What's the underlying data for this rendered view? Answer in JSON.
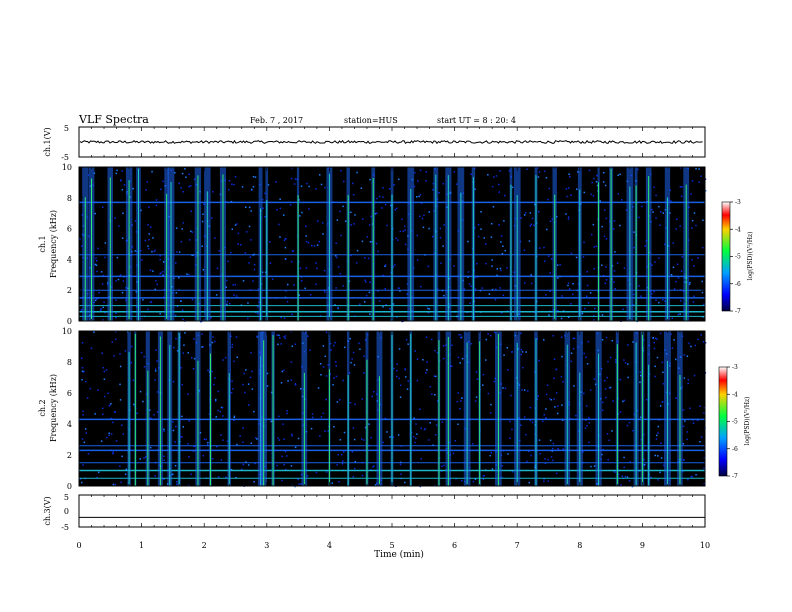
{
  "header": {
    "title": "VLF Spectra",
    "date": "Feb. 7 , 2017",
    "station": "station=HUS",
    "start_time": "start UT = 8 : 20: 4"
  },
  "chart_data": [
    {
      "type": "line",
      "panel": "ch1-waveform",
      "ylabel": "ch.1(V)",
      "ylim": [
        -5,
        5
      ],
      "yticks": [
        "5",
        "-5"
      ],
      "baseline_value": 0,
      "color": "#000000"
    },
    {
      "type": "heatmap",
      "panel": "ch1-spectrogram",
      "ylabel": "ch.1\nFrequency (kHz)",
      "ylim": [
        0,
        10
      ],
      "yticks": [
        "0",
        "2",
        "4",
        "6",
        "8",
        "10"
      ],
      "xlim": [
        0,
        10
      ],
      "colorbar": {
        "label": "log(PSD)(V²/Hz)",
        "range": [
          -7,
          -3
        ],
        "ticks": [
          "-3",
          "-4",
          "-5",
          "-6",
          "-7"
        ]
      },
      "background_color": "#000000",
      "horizontal_bands_khz": [
        0.3,
        0.6,
        1.0,
        1.5,
        2.0,
        2.9,
        4.3,
        7.7
      ],
      "vertical_bursts_min": [
        0.1,
        0.2,
        0.5,
        0.8,
        0.95,
        1.4,
        1.47,
        1.9,
        2.05,
        2.3,
        2.9,
        3.0,
        3.5,
        4.0,
        4.3,
        4.7,
        5.0,
        5.3,
        5.7,
        5.9,
        6.1,
        6.3,
        6.9,
        7.0,
        7.3,
        7.6,
        8.0,
        8.3,
        8.5,
        8.8,
        8.9,
        9.1,
        9.4,
        9.7
      ]
    },
    {
      "type": "heatmap",
      "panel": "ch2-spectrogram",
      "ylabel": "ch.2\nFrequency (kHz)",
      "ylim": [
        0,
        10
      ],
      "yticks": [
        "0",
        "2",
        "4",
        "6",
        "8",
        "10"
      ],
      "xlim": [
        0,
        10
      ],
      "colorbar": {
        "label": "log(PSD)(V²/Hz)",
        "range": [
          -7,
          -3
        ],
        "ticks": [
          "-3",
          "-4",
          "-5",
          "-6",
          "-7"
        ]
      },
      "background_color": "#000000",
      "horizontal_bands_khz": [
        0.5,
        1.0,
        1.5,
        2.3,
        2.6,
        4.3
      ],
      "vertical_bursts_min": [
        0.8,
        0.9,
        1.1,
        1.3,
        1.45,
        1.6,
        1.9,
        2.1,
        2.4,
        2.9,
        2.95,
        3.1,
        3.6,
        4.0,
        4.3,
        4.6,
        4.8,
        5.0,
        5.3,
        5.75,
        5.9,
        6.2,
        6.4,
        6.7,
        7.0,
        7.3,
        7.8,
        8.0,
        8.3,
        8.6,
        8.9,
        9.0,
        9.1,
        9.4,
        9.6
      ]
    },
    {
      "type": "line",
      "panel": "ch3-waveform",
      "ylabel": "ch.3(V)",
      "ylim": [
        -5,
        5
      ],
      "yticks": [
        "5",
        "0",
        "-5"
      ],
      "baseline_value": -2,
      "xlabel": "Time (min)",
      "xlim": [
        0,
        10
      ],
      "xticks": [
        "0",
        "1",
        "2",
        "3",
        "4",
        "5",
        "6",
        "7",
        "8",
        "9",
        "10"
      ],
      "color": "#000000"
    }
  ]
}
